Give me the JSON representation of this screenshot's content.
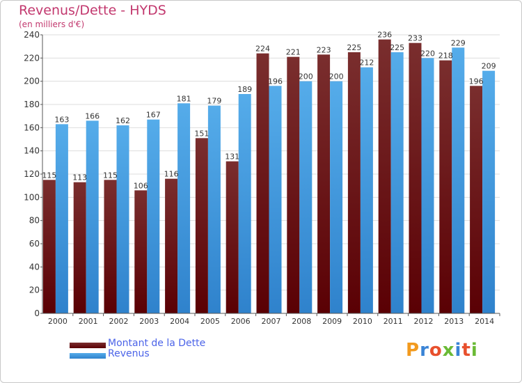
{
  "header": {
    "title": "Revenus/Dette - HYDS",
    "subtitle": "(en milliers d'€)"
  },
  "legend": {
    "dette_label": "Montant de la Dette",
    "revenus_label": "Revenus"
  },
  "logo": {
    "text": "Proxiti",
    "letter_colors": [
      "#f29a1e",
      "#3a84d6",
      "#e8502d",
      "#6aba35",
      "#3a84d6",
      "#e8502d",
      "#6aba35"
    ]
  },
  "colors": {
    "dette_top": "#7a2e2e",
    "dette_bottom": "#5a0004",
    "revenus_top": "#55acea",
    "revenus_bottom": "#2f82cc",
    "grid": "#dddddd",
    "axis_text": "#333333"
  },
  "chart_data": {
    "type": "bar",
    "title": "Revenus/Dette - HYDS",
    "subtitle": "(en milliers d'€)",
    "categories": [
      "2000",
      "2001",
      "2002",
      "2003",
      "2004",
      "2005",
      "2006",
      "2007",
      "2008",
      "2009",
      "2010",
      "2011",
      "2012",
      "2013",
      "2014"
    ],
    "series": [
      {
        "name": "Montant de la Dette",
        "values": [
          115,
          113,
          115,
          106,
          116,
          151,
          131,
          224,
          221,
          223,
          225,
          236,
          233,
          218,
          196
        ]
      },
      {
        "name": "Revenus",
        "values": [
          163,
          166,
          162,
          167,
          181,
          179,
          189,
          196,
          200,
          200,
          212,
          225,
          220,
          229,
          209
        ]
      }
    ],
    "ylim": [
      0,
      240
    ],
    "yticks": [
      0,
      20,
      40,
      60,
      80,
      100,
      120,
      140,
      160,
      180,
      200,
      220,
      240
    ],
    "grid": true,
    "legend_position": "bottom-left"
  }
}
